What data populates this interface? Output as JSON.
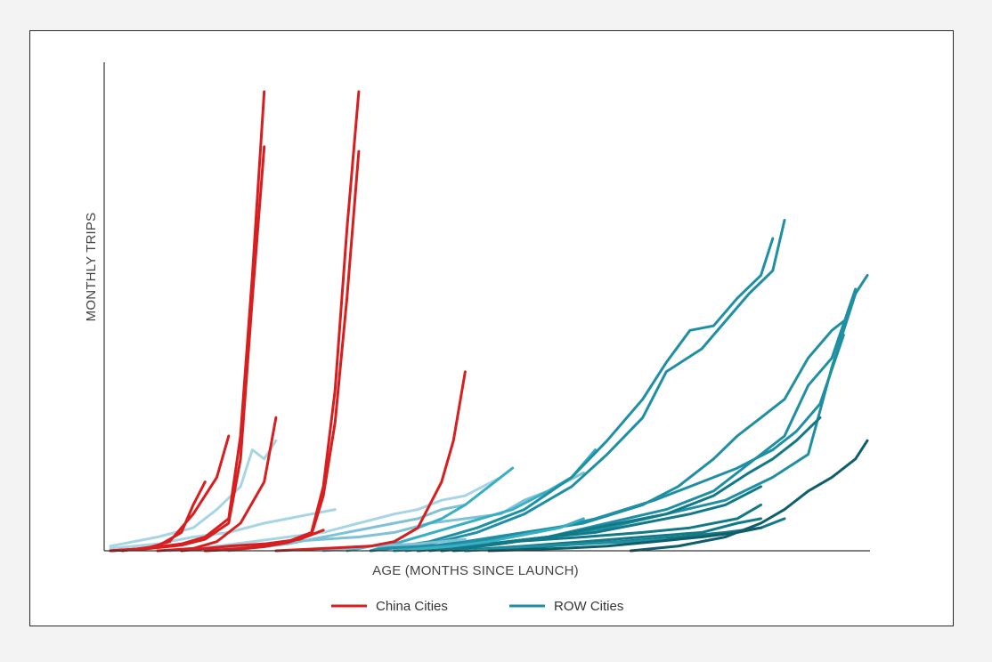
{
  "chart_data": {
    "type": "line",
    "title": "",
    "xlabel": "AGE (MONTHS SINCE LAUNCH)",
    "ylabel": "MONTHLY TRIPS",
    "xlim": [
      0,
      64
    ],
    "ylim": [
      0,
      100
    ],
    "grid": false,
    "axis_ticks": false,
    "legend": {
      "position": "bottom-center",
      "entries": [
        {
          "label": "China Cities",
          "color": "#d81e1e"
        },
        {
          "label": "ROW Cities",
          "color": "#1f8fa3"
        }
      ]
    },
    "groups": {
      "china": {
        "name": "China Cities",
        "color": "#d81e1e",
        "series": [
          {
            "x": [
              0,
              3,
              6,
              8,
              10,
              11,
              12,
              13
            ],
            "y": [
              0,
              0.5,
              1.5,
              3,
              7,
              25,
              60,
              100
            ]
          },
          {
            "x": [
              0,
              3,
              6,
              8,
              10,
              11,
              12,
              13
            ],
            "y": [
              0,
              0.4,
              1.2,
              2.5,
              6,
              20,
              55,
              88
            ]
          },
          {
            "x": [
              0,
              3,
              5,
              7,
              9,
              10
            ],
            "y": [
              0,
              0.5,
              2,
              8,
              16,
              25
            ]
          },
          {
            "x": [
              1,
              4,
              6,
              7,
              8
            ],
            "y": [
              0,
              1,
              4,
              10,
              15
            ]
          },
          {
            "x": [
              4,
              7,
              9,
              11,
              13,
              14
            ],
            "y": [
              0,
              0.5,
              2,
              6,
              15,
              29
            ]
          },
          {
            "x": [
              8,
              11,
              13,
              15,
              17,
              18,
              19,
              20,
              21
            ],
            "y": [
              0,
              0.5,
              1,
              2,
              4,
              14,
              35,
              70,
              100
            ]
          },
          {
            "x": [
              8,
              11,
              13,
              15,
              17,
              18,
              19,
              20,
              21
            ],
            "y": [
              0,
              0.4,
              0.9,
              1.8,
              3.5,
              12,
              28,
              55,
              87
            ]
          },
          {
            "x": [
              14,
              18,
              22,
              24,
              26,
              28,
              29,
              30
            ],
            "y": [
              0,
              0.5,
              1,
              2,
              5,
              15,
              24,
              39
            ]
          },
          {
            "x": [
              6,
              10,
              13,
              16,
              18
            ],
            "y": [
              0,
              1,
              1.5,
              2.5,
              4.5
            ]
          }
        ]
      },
      "row": {
        "name": "ROW Cities",
        "colors": [
          "#a8d5e5",
          "#7fc2d6",
          "#3aaec2",
          "#1f8fa3",
          "#127987",
          "#0f5e6a"
        ],
        "series": [
          {
            "x": [
              0,
              4,
              7,
              9,
              11,
              12,
              13,
              14
            ],
            "y": [
              1,
              3,
              5,
              9,
              14,
              22,
              20,
              24
            ],
            "c": 0
          },
          {
            "x": [
              0,
              4,
              7,
              10,
              13,
              15,
              17,
              19
            ],
            "y": [
              0.5,
              1.5,
              3,
              4,
              6,
              7,
              8,
              9
            ],
            "c": 0
          },
          {
            "x": [
              5,
              9,
              12,
              15,
              18,
              21,
              24,
              26,
              28,
              30,
              33
            ],
            "y": [
              0,
              1,
              2,
              3,
              4,
              6,
              8,
              9,
              11,
              12,
              16
            ],
            "c": 0
          },
          {
            "x": [
              8,
              12,
              15,
              18,
              21,
              24,
              27,
              30,
              33,
              35,
              37,
              40
            ],
            "y": [
              0,
              1,
              2,
              2.5,
              3,
              4,
              6,
              7,
              8,
              11,
              13,
              17
            ],
            "c": 1
          },
          {
            "x": [
              10,
              15,
              20,
              24,
              26,
              28,
              30
            ],
            "y": [
              0,
              1.5,
              4,
              6,
              7,
              9,
              10
            ],
            "c": 1
          },
          {
            "x": [
              20,
              24,
              26,
              28,
              30,
              32,
              34
            ],
            "y": [
              0,
              2,
              5,
              7,
              10,
              14,
              18
            ],
            "c": 2
          },
          {
            "x": [
              22,
              26,
              30,
              34,
              37,
              39,
              41
            ],
            "y": [
              0,
              3,
              6,
              9,
              13,
              16,
              22
            ],
            "c": 2
          },
          {
            "x": [
              22,
              27,
              31,
              35,
              39,
              42,
              45,
              47,
              49,
              51,
              53,
              55,
              56
            ],
            "y": [
              0,
              2,
              5,
              9,
              16,
              24,
              33,
              41,
              48,
              49,
              55,
              60,
              68
            ],
            "c": 3
          },
          {
            "x": [
              22,
              27,
              31,
              35,
              39,
              42,
              45,
              47,
              50,
              52,
              54,
              56,
              57
            ],
            "y": [
              0,
              1.5,
              4,
              8,
              14,
              21,
              29,
              39,
              44,
              50,
              56,
              61,
              72
            ],
            "c": 3
          },
          {
            "x": [
              24,
              30,
              35,
              40,
              45,
              48,
              51,
              53,
              55,
              57,
              59,
              61,
              62
            ],
            "y": [
              0,
              2,
              4,
              6,
              10,
              14,
              20,
              25,
              29,
              33,
              42,
              48,
              50
            ],
            "c": 3
          },
          {
            "x": [
              25,
              31,
              36,
              41,
              46,
              50,
              53,
              56,
              58,
              60,
              62
            ],
            "y": [
              0,
              2,
              4,
              7,
              11,
              15,
              18,
              22,
              26,
              32,
              47
            ],
            "c": 3
          },
          {
            "x": [
              26,
              32,
              37,
              42,
              47,
              51,
              54,
              57,
              59,
              61,
              63
            ],
            "y": [
              0,
              1.5,
              3,
              6,
              9,
              13,
              19,
              25,
              36,
              42,
              57
            ],
            "c": 3
          },
          {
            "x": [
              27,
              32,
              37,
              42,
              47,
              52,
              56,
              59,
              61,
              63,
              64
            ],
            "y": [
              0,
              1.5,
              3,
              5,
              8,
              11,
              16,
              21,
              40,
              56,
              60
            ],
            "c": 3
          },
          {
            "x": [
              26,
              32,
              37,
              42,
              47,
              51,
              54,
              56,
              58,
              60
            ],
            "y": [
              0,
              1.5,
              3,
              5.5,
              8,
              12,
              17,
              20,
              24,
              29
            ],
            "c": 4
          },
          {
            "x": [
              28,
              33,
              37,
              41,
              45,
              49,
              52,
              55
            ],
            "y": [
              0,
              1.5,
              3,
              4,
              6,
              8,
              10,
              14
            ],
            "c": 4
          },
          {
            "x": [
              28,
              34,
              40,
              45,
              49,
              53,
              55
            ],
            "y": [
              0,
              2,
              3,
              4,
              5,
              7,
              10
            ],
            "c": 4
          },
          {
            "x": [
              29,
              35,
              40,
              45,
              50,
              53,
              55
            ],
            "y": [
              0,
              1,
              2,
              3,
              4,
              6,
              7
            ],
            "c": 4
          },
          {
            "x": [
              30,
              37,
              43,
              48,
              52,
              55,
              57
            ],
            "y": [
              0,
              1,
              2,
              3,
              4,
              5,
              7
            ],
            "c": 4
          },
          {
            "x": [
              30,
              36,
              40,
              44,
              47
            ],
            "y": [
              0,
              1,
              1.5,
              2,
              2.5
            ],
            "c": 3
          },
          {
            "x": [
              32,
              38,
              42,
              46,
              50,
              53,
              55
            ],
            "y": [
              0,
              0.5,
              1,
              2,
              3,
              4,
              5
            ],
            "c": 5
          },
          {
            "x": [
              44,
              48,
              52,
              55,
              57,
              59,
              61,
              63,
              64
            ],
            "y": [
              0,
              1,
              3,
              6,
              9,
              13,
              16,
              20,
              24
            ],
            "c": 5
          },
          {
            "x": [
              24,
              29,
              32,
              35,
              38,
              40
            ],
            "y": [
              0,
              1,
              2,
              3.5,
              5,
              7
            ],
            "c": 2
          },
          {
            "x": [
              18,
              22,
              26,
              28,
              30
            ],
            "y": [
              0,
              1,
              1.5,
              2,
              2.5
            ],
            "c": 1
          }
        ]
      }
    }
  }
}
